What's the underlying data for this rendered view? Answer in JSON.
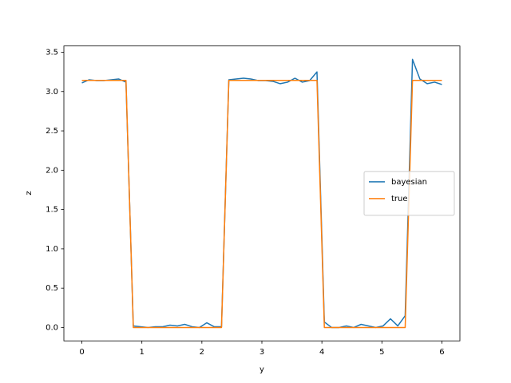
{
  "chart_data": {
    "type": "line",
    "xlabel": "y",
    "ylabel": "z",
    "x": [
      0,
      0.122,
      0.245,
      0.367,
      0.49,
      0.612,
      0.735,
      0.857,
      0.98,
      1.102,
      1.224,
      1.347,
      1.469,
      1.592,
      1.714,
      1.837,
      1.959,
      2.082,
      2.204,
      2.327,
      2.449,
      2.571,
      2.694,
      2.816,
      2.939,
      3.061,
      3.184,
      3.306,
      3.429,
      3.551,
      3.673,
      3.796,
      3.918,
      4.041,
      4.163,
      4.286,
      4.408,
      4.531,
      4.653,
      4.776,
      4.898,
      5.02,
      5.143,
      5.265,
      5.388,
      5.51,
      5.633,
      5.755,
      5.878,
      6
    ],
    "series": [
      {
        "name": "bayesian",
        "color": "#1f77b4",
        "values": [
          3.11,
          3.15,
          3.14,
          3.14,
          3.15,
          3.16,
          3.12,
          0.02,
          0.01,
          0.0,
          0.01,
          0.01,
          0.03,
          0.02,
          0.04,
          0.01,
          0.0,
          0.06,
          0.01,
          0.01,
          3.15,
          3.16,
          3.17,
          3.16,
          3.14,
          3.14,
          3.13,
          3.1,
          3.12,
          3.17,
          3.12,
          3.14,
          3.25,
          0.07,
          0.0,
          0.0,
          0.02,
          0.0,
          0.04,
          0.02,
          0.0,
          0.02,
          0.11,
          0.02,
          0.15,
          3.41,
          3.16,
          3.1,
          3.12,
          3.09
        ]
      },
      {
        "name": "true",
        "color": "#ff7f0e",
        "values": [
          3.14159,
          3.14159,
          3.14159,
          3.14159,
          3.14159,
          3.14159,
          3.14159,
          0,
          0,
          0,
          0,
          0,
          0,
          0,
          0,
          0,
          0,
          0,
          0,
          0,
          3.14159,
          3.14159,
          3.14159,
          3.14159,
          3.14159,
          3.14159,
          3.14159,
          3.14159,
          3.14159,
          3.14159,
          3.14159,
          3.14159,
          3.14159,
          0,
          0,
          0,
          0,
          0,
          0,
          0,
          0,
          0,
          0,
          0,
          0,
          3.14159,
          3.14159,
          3.14159,
          3.14159,
          3.14159
        ]
      }
    ],
    "xlim": [
      -0.3,
      6.3
    ],
    "xticks": [
      0,
      1,
      2,
      3,
      4,
      5,
      6
    ],
    "ylim": [
      -0.17,
      3.58
    ],
    "yticks": [
      {
        "value": 0,
        "label": "0.0"
      },
      0.5,
      {
        "value": 1,
        "label": "1.0"
      },
      1.5,
      {
        "value": 2,
        "label": "2.0"
      },
      2.5,
      {
        "value": 3,
        "label": "3.0"
      },
      3.5
    ],
    "legend": "center right"
  }
}
